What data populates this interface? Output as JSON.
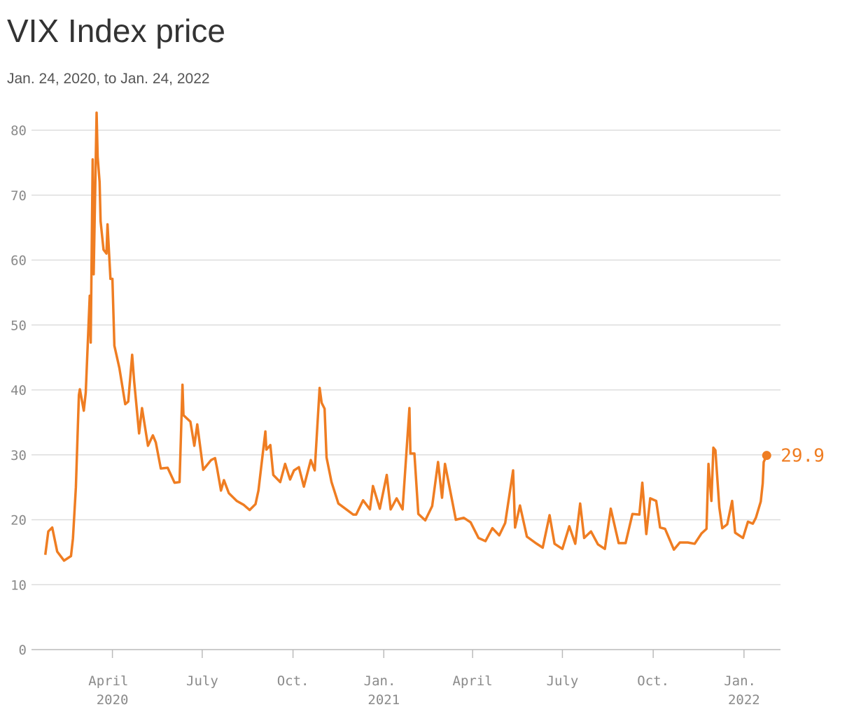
{
  "chart_data": {
    "type": "line",
    "title": "VIX Index price",
    "subtitle": "Jan. 24, 2020, to Jan. 24, 2022",
    "x": [
      "2020-01-24",
      "2020-01-27",
      "2020-01-31",
      "2020-02-05",
      "2020-02-12",
      "2020-02-19",
      "2020-02-21",
      "2020-02-24",
      "2020-02-27",
      "2020-02-28",
      "2020-03-03",
      "2020-03-05",
      "2020-03-09",
      "2020-03-10",
      "2020-03-12",
      "2020-03-13",
      "2020-03-16",
      "2020-03-17",
      "2020-03-19",
      "2020-03-20",
      "2020-03-23",
      "2020-03-26",
      "2020-03-27",
      "2020-03-30",
      "2020-04-01",
      "2020-04-03",
      "2020-04-08",
      "2020-04-14",
      "2020-04-17",
      "2020-04-21",
      "2020-04-23",
      "2020-04-28",
      "2020-05-01",
      "2020-05-07",
      "2020-05-12",
      "2020-05-15",
      "2020-05-20",
      "2020-05-27",
      "2020-06-03",
      "2020-06-08",
      "2020-06-11",
      "2020-06-12",
      "2020-06-19",
      "2020-06-23",
      "2020-06-26",
      "2020-07-02",
      "2020-07-10",
      "2020-07-14",
      "2020-07-16",
      "2020-07-20",
      "2020-07-23",
      "2020-07-28",
      "2020-08-05",
      "2020-08-12",
      "2020-08-18",
      "2020-08-24",
      "2020-08-27",
      "2020-09-03",
      "2020-09-04",
      "2020-09-08",
      "2020-09-11",
      "2020-09-18",
      "2020-09-23",
      "2020-09-28",
      "2020-10-02",
      "2020-10-07",
      "2020-10-12",
      "2020-10-19",
      "2020-10-23",
      "2020-10-28",
      "2020-10-30",
      "2020-11-02",
      "2020-11-04",
      "2020-11-09",
      "2020-11-16",
      "2020-11-24",
      "2020-12-01",
      "2020-12-04",
      "2020-12-11",
      "2020-12-18",
      "2020-12-21",
      "2020-12-28",
      "2021-01-04",
      "2021-01-08",
      "2021-01-14",
      "2021-01-20",
      "2021-01-27",
      "2021-01-28",
      "2021-02-01",
      "2021-02-05",
      "2021-02-12",
      "2021-02-19",
      "2021-02-25",
      "2021-03-01",
      "2021-03-04",
      "2021-03-08",
      "2021-03-15",
      "2021-03-23",
      "2021-03-30",
      "2021-04-07",
      "2021-04-14",
      "2021-04-21",
      "2021-04-28",
      "2021-05-04",
      "2021-05-12",
      "2021-05-14",
      "2021-05-19",
      "2021-05-26",
      "2021-06-04",
      "2021-06-11",
      "2021-06-18",
      "2021-06-23",
      "2021-07-01",
      "2021-07-08",
      "2021-07-14",
      "2021-07-19",
      "2021-07-23",
      "2021-07-30",
      "2021-08-06",
      "2021-08-13",
      "2021-08-19",
      "2021-08-27",
      "2021-09-03",
      "2021-09-10",
      "2021-09-17",
      "2021-09-20",
      "2021-09-24",
      "2021-09-28",
      "2021-10-04",
      "2021-10-08",
      "2021-10-13",
      "2021-10-22",
      "2021-10-28",
      "2021-11-05",
      "2021-11-12",
      "2021-11-19",
      "2021-11-24",
      "2021-11-26",
      "2021-11-29",
      "2021-12-01",
      "2021-12-03",
      "2021-12-07",
      "2021-12-10",
      "2021-12-15",
      "2021-12-20",
      "2021-12-23",
      "2021-12-31",
      "2022-01-05",
      "2022-01-10",
      "2022-01-13",
      "2022-01-18",
      "2022-01-20",
      "2022-01-21",
      "2022-01-24"
    ],
    "series": [
      {
        "color": "#ef7d22",
        "values": [
          14.6,
          18.2,
          18.8,
          15.1,
          13.7,
          14.4,
          17.1,
          25.0,
          39.2,
          40.1,
          36.8,
          39.6,
          54.5,
          47.3,
          75.5,
          57.8,
          82.7,
          75.9,
          72.0,
          66.0,
          61.6,
          61.0,
          65.5,
          57.1,
          57.1,
          46.8,
          43.4,
          37.8,
          38.2,
          45.4,
          41.4,
          33.3,
          37.2,
          31.4,
          33.0,
          31.9,
          27.9,
          28.0,
          25.7,
          25.8,
          40.8,
          36.1,
          35.1,
          31.4,
          34.7,
          27.7,
          29.2,
          29.5,
          28.0,
          24.5,
          26.1,
          24.1,
          22.9,
          22.3,
          21.5,
          22.4,
          24.5,
          33.6,
          30.8,
          31.5,
          26.9,
          25.8,
          28.6,
          26.2,
          27.6,
          28.1,
          25.1,
          29.2,
          27.6,
          40.3,
          38.0,
          37.1,
          29.6,
          25.8,
          22.5,
          21.6,
          20.8,
          20.8,
          23.0,
          21.6,
          25.2,
          21.7,
          26.9,
          21.6,
          23.3,
          21.6,
          37.2,
          30.2,
          30.2,
          20.9,
          19.9,
          22.1,
          28.9,
          23.4,
          28.6,
          25.5,
          20.0,
          20.3,
          19.6,
          17.2,
          16.7,
          18.7,
          17.6,
          19.5,
          27.6,
          18.8,
          22.2,
          17.4,
          16.4,
          15.7,
          20.7,
          16.3,
          15.5,
          19.0,
          16.3,
          22.5,
          17.2,
          18.2,
          16.2,
          15.5,
          21.7,
          16.4,
          16.4,
          20.9,
          20.8,
          25.7,
          17.8,
          23.3,
          22.9,
          18.8,
          18.6,
          15.4,
          16.5,
          16.5,
          16.3,
          17.9,
          18.6,
          28.6,
          22.9,
          31.1,
          30.7,
          21.9,
          18.7,
          19.3,
          22.9,
          18.0,
          17.2,
          19.7,
          19.4,
          20.3,
          22.8,
          25.6,
          28.9,
          29.9
        ]
      }
    ],
    "xlim": [
      "2020-01-10",
      "2022-02-07"
    ],
    "xticks": [
      {
        "value": "2020-04-01",
        "label": "April 2020"
      },
      {
        "value": "2020-07-01",
        "label": "July"
      },
      {
        "value": "2020-10-01",
        "label": "Oct."
      },
      {
        "value": "2021-01-01",
        "label": "Jan. 2021"
      },
      {
        "value": "2021-04-01",
        "label": "April"
      },
      {
        "value": "2021-07-01",
        "label": "July"
      },
      {
        "value": "2021-10-01",
        "label": "Oct."
      },
      {
        "value": "2022-01-01",
        "label": "Jan. 2022"
      }
    ],
    "ylim": [
      0,
      80
    ],
    "yticks": [
      0,
      10,
      20,
      30,
      40,
      50,
      60,
      70,
      80
    ],
    "grid": true
  }
}
